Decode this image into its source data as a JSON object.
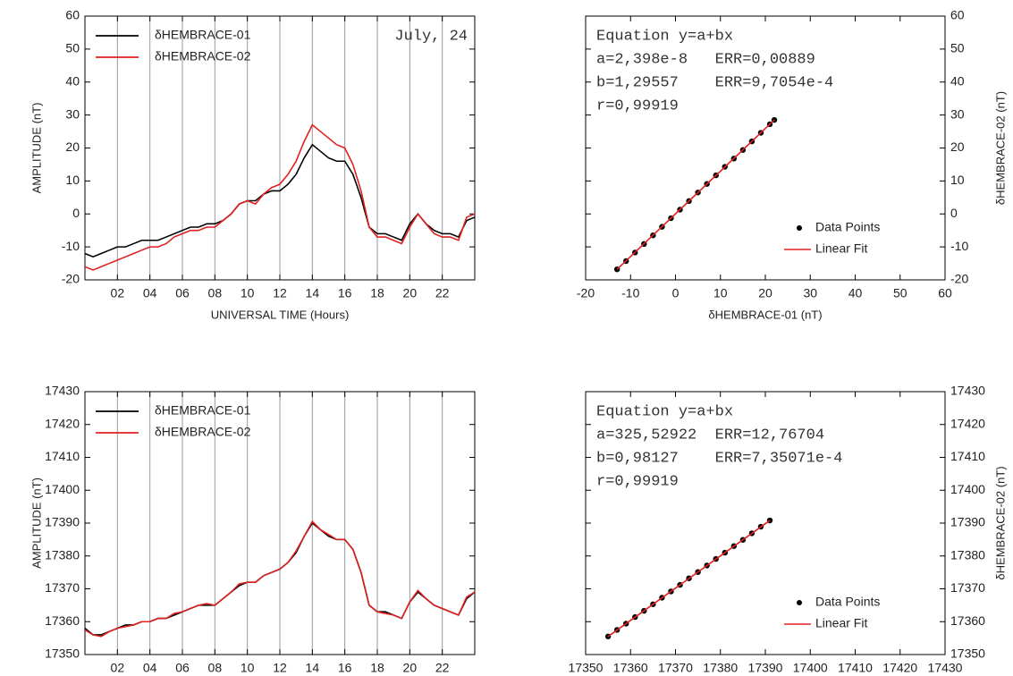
{
  "chart_data": [
    {
      "type": "line",
      "annotation": "July, 24",
      "xlabel": "UNIVERSAL TIME (Hours)",
      "ylabel": "AMPLITUDE (nT)",
      "x": [
        0,
        0.5,
        1,
        1.5,
        2,
        2.5,
        3,
        3.5,
        4,
        4.5,
        5,
        5.5,
        6,
        6.5,
        7,
        7.5,
        8,
        8.5,
        9,
        9.5,
        10,
        10.5,
        11,
        11.5,
        12,
        12.5,
        13,
        13.5,
        14,
        14.5,
        15,
        15.5,
        16,
        16.5,
        17,
        17.5,
        18,
        18.5,
        19,
        19.5,
        20,
        20.5,
        21,
        21.5,
        22,
        22.5,
        23,
        23.5,
        24
      ],
      "series": [
        {
          "name": "δHEMBRACE-01",
          "color": "#000000",
          "values": [
            -12,
            -13,
            -12,
            -11,
            -10,
            -10,
            -9,
            -8,
            -8,
            -8,
            -7,
            -6,
            -5,
            -4,
            -4,
            -3,
            -3,
            -2,
            0,
            3,
            4,
            4,
            6,
            7,
            7,
            9,
            12,
            17,
            21,
            19,
            17,
            16,
            16,
            12,
            5,
            -4,
            -6,
            -6,
            -7,
            -8,
            -3,
            0,
            -3,
            -5,
            -6,
            -6,
            -7,
            -2,
            -1
          ]
        },
        {
          "name": "δHEMBRACE-02",
          "color": "#e02020",
          "values": [
            -16,
            -17,
            -16,
            -15,
            -14,
            -13,
            -12,
            -11,
            -10,
            -10,
            -9,
            -7,
            -6,
            -5,
            -5,
            -4,
            -4,
            -2,
            0,
            3,
            4,
            3,
            6,
            8,
            9,
            12,
            16,
            22,
            27,
            25,
            23,
            21,
            20,
            15,
            7,
            -4,
            -7,
            -7,
            -8,
            -9,
            -4,
            0,
            -3,
            -6,
            -7,
            -7,
            -8,
            -1,
            0
          ]
        }
      ],
      "xlim": [
        0,
        24
      ],
      "xticks": [
        {
          "value": 2,
          "label": "02"
        },
        {
          "value": 4,
          "label": "04"
        },
        {
          "value": 6,
          "label": "06"
        },
        {
          "value": 8,
          "label": "08"
        },
        10,
        12,
        14,
        16,
        18,
        20,
        22
      ],
      "ylim": [
        -20,
        60
      ],
      "yticks": [
        -20,
        -10,
        0,
        10,
        20,
        30,
        40,
        50,
        60
      ],
      "grid": "x",
      "legend": "upper left",
      "y_axis_side": "left"
    },
    {
      "type": "scatter",
      "annotations": [
        "Equation y=a+bx",
        "a=2,398e-8   ERR=0,00889",
        "b=1,29557    ERR=9,7054e-4",
        "r=0,99919"
      ],
      "xlabel": "δHEMBRACE-01 (nT)",
      "ylabel": "δHEMBRACE-02 (nT)",
      "series": [
        {
          "name": "Data Points",
          "color": "#000000",
          "mode": "markers",
          "x": [
            -13,
            -11,
            -9,
            -7,
            -5,
            -3,
            -1,
            1,
            3,
            5,
            7,
            9,
            11,
            13,
            15,
            17,
            19,
            21,
            22
          ],
          "values": [
            -16.8,
            -14.3,
            -11.7,
            -9.1,
            -6.5,
            -3.9,
            -1.3,
            1.3,
            3.9,
            6.5,
            9.1,
            11.7,
            14.3,
            16.8,
            19.4,
            22.0,
            24.6,
            27.2,
            28.5
          ]
        },
        {
          "name": "Linear Fit",
          "color": "#e02020",
          "mode": "lines",
          "x": [
            -13,
            22
          ],
          "values": [
            -16.8,
            28.5
          ]
        }
      ],
      "xlim": [
        -20,
        60
      ],
      "xticks": [
        -20,
        -10,
        0,
        10,
        20,
        30,
        40,
        50,
        60
      ],
      "ylim": [
        -20,
        60
      ],
      "yticks": [
        -20,
        -10,
        0,
        10,
        20,
        30,
        40,
        50,
        60
      ],
      "legend": "lower right",
      "y_axis_side": "right"
    },
    {
      "type": "line",
      "xlabel": "UNIVERSAL TIME (Hours)",
      "ylabel": "AMPLITUDE (nT)",
      "x": [
        0,
        0.5,
        1,
        1.5,
        2,
        2.5,
        3,
        3.5,
        4,
        4.5,
        5,
        5.5,
        6,
        6.5,
        7,
        7.5,
        8,
        8.5,
        9,
        9.5,
        10,
        10.5,
        11,
        11.5,
        12,
        12.5,
        13,
        13.5,
        14,
        14.5,
        15,
        15.5,
        16,
        16.5,
        17,
        17.5,
        18,
        18.5,
        19,
        19.5,
        20,
        20.5,
        21,
        21.5,
        22,
        22.5,
        23,
        23.5,
        24
      ],
      "series": [
        {
          "name": "δHEMBRACE-01",
          "color": "#000000",
          "values": [
            17358,
            17356,
            17356,
            17357,
            17358,
            17359,
            17359,
            17360,
            17360,
            17361,
            17361,
            17362,
            17363,
            17364,
            17365,
            17365,
            17365,
            17367,
            17369,
            17371,
            17372,
            17372,
            17374,
            17375,
            17376,
            17378,
            17381,
            17386,
            17390,
            17388,
            17386,
            17385,
            17385,
            17382,
            17375,
            17365,
            17363,
            17363,
            17362,
            17361,
            17366,
            17369,
            17367,
            17365,
            17364,
            17363,
            17362,
            17367,
            17369
          ]
        },
        {
          "name": "δHEMBRACE-02",
          "color": "#e02020",
          "values": [
            17357.5,
            17356,
            17355.5,
            17357,
            17358,
            17358.5,
            17359,
            17360,
            17360,
            17361,
            17361,
            17362.5,
            17363,
            17364,
            17365,
            17365.5,
            17365,
            17367,
            17369,
            17371.5,
            17372,
            17372,
            17374,
            17375,
            17376,
            17378,
            17381.5,
            17386,
            17390.5,
            17388,
            17386.5,
            17385,
            17385,
            17382,
            17375,
            17365,
            17363,
            17362.5,
            17362,
            17361,
            17366,
            17369.5,
            17367,
            17365,
            17364,
            17363,
            17362,
            17367.5,
            17369
          ]
        }
      ],
      "xlim": [
        0,
        24
      ],
      "xticks": [
        {
          "value": 2,
          "label": "02"
        },
        {
          "value": 4,
          "label": "04"
        },
        {
          "value": 6,
          "label": "06"
        },
        {
          "value": 8,
          "label": "08"
        },
        10,
        12,
        14,
        16,
        18,
        20,
        22
      ],
      "ylim": [
        17350,
        17430
      ],
      "yticks": [
        17350,
        17360,
        17370,
        17380,
        17390,
        17400,
        17410,
        17420,
        17430
      ],
      "grid": "x",
      "legend": "upper left",
      "y_axis_side": "left"
    },
    {
      "type": "scatter",
      "annotations": [
        "Equation y=a+bx",
        "a=325,52922  ERR=12,76704",
        "b=0,98127    ERR=7,35071e-4",
        "r=0,99919"
      ],
      "xlabel": "δHEMBRACE-01 (nT)",
      "ylabel": "δHEMBRACE-02 (nT)",
      "series": [
        {
          "name": "Data Points",
          "color": "#000000",
          "mode": "markers",
          "x": [
            17355,
            17357,
            17359,
            17361,
            17363,
            17365,
            17367,
            17369,
            17371,
            17373,
            17375,
            17377,
            17379,
            17381,
            17383,
            17385,
            17387,
            17389,
            17391
          ],
          "values": [
            17355.5,
            17357.5,
            17359.4,
            17361.4,
            17363.3,
            17365.3,
            17367.3,
            17369.2,
            17371.2,
            17373.2,
            17375.1,
            17377.1,
            17379.1,
            17381.0,
            17383.0,
            17384.9,
            17386.9,
            17388.9,
            17390.8
          ]
        },
        {
          "name": "Linear Fit",
          "color": "#e02020",
          "mode": "lines",
          "x": [
            17355,
            17391
          ],
          "values": [
            17355.5,
            17390.8
          ]
        }
      ],
      "xlim": [
        17350,
        17430
      ],
      "xticks": [
        17350,
        17360,
        17370,
        17380,
        17390,
        17400,
        17410,
        17420,
        17430
      ],
      "ylim": [
        17350,
        17430
      ],
      "yticks": [
        17350,
        17360,
        17370,
        17380,
        17390,
        17400,
        17410,
        17420,
        17430
      ],
      "legend": "lower right",
      "y_axis_side": "right"
    }
  ]
}
